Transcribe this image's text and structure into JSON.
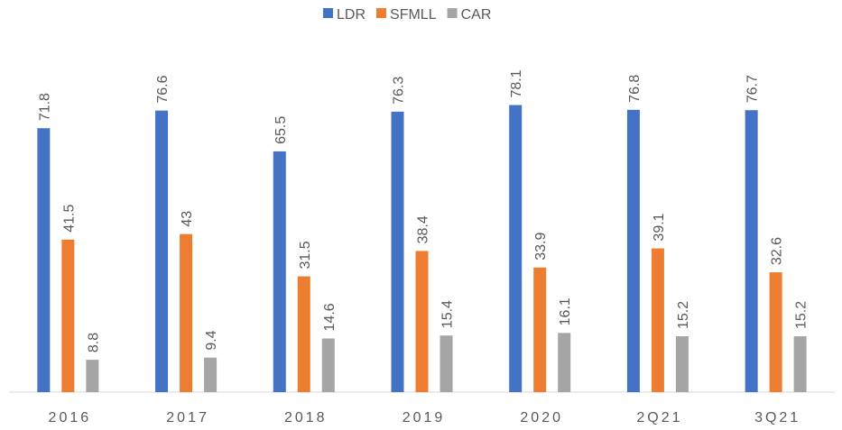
{
  "chart_data": {
    "type": "bar",
    "categories": [
      "2016",
      "2017",
      "2018",
      "2019",
      "2020",
      "2Q21",
      "3Q21"
    ],
    "series": [
      {
        "name": "LDR",
        "color": "#4472c4",
        "values": [
          71.8,
          76.6,
          65.5,
          76.3,
          78.1,
          76.8,
          76.7
        ]
      },
      {
        "name": "SFMLL",
        "color": "#ed7d31",
        "values": [
          41.5,
          43,
          31.5,
          38.4,
          33.9,
          39.1,
          32.6
        ]
      },
      {
        "name": "CAR",
        "color": "#a5a5a5",
        "values": [
          8.8,
          9.4,
          14.6,
          15.4,
          16.1,
          15.2,
          15.2
        ]
      }
    ],
    "ylim": [
      0,
      90
    ],
    "legend": "top"
  }
}
